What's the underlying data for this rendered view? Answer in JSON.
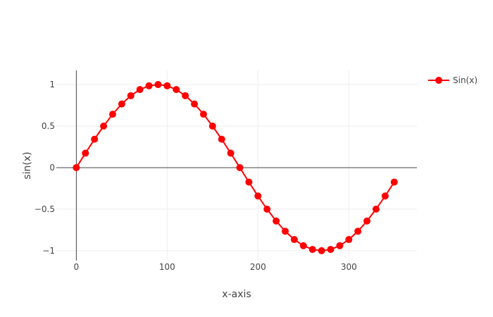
{
  "chart_data": {
    "type": "line",
    "xlabel": "x-axis",
    "ylabel": "sin(x)",
    "xlim": [
      -22,
      375
    ],
    "ylim": [
      -1.12,
      1.17
    ],
    "x_ticks": [
      0,
      100,
      200,
      300
    ],
    "x_tick_labels": [
      "0",
      "100",
      "200",
      "300"
    ],
    "y_ticks": [
      -1,
      -0.5,
      0,
      0.5,
      1
    ],
    "y_tick_labels": [
      "−1",
      "−0.5",
      "0",
      "0.5",
      "1"
    ],
    "grid": true,
    "legend_position": "top-right",
    "series": [
      {
        "name": "Sin(x)",
        "color": "#ff0000",
        "marker": "circle",
        "x": [
          0,
          10,
          20,
          30,
          40,
          50,
          60,
          70,
          80,
          90,
          100,
          110,
          120,
          130,
          140,
          150,
          160,
          170,
          180,
          190,
          200,
          210,
          220,
          230,
          240,
          250,
          260,
          270,
          280,
          290,
          300,
          310,
          320,
          330,
          340,
          350
        ],
        "y": [
          0,
          0.174,
          0.342,
          0.5,
          0.643,
          0.766,
          0.866,
          0.94,
          0.985,
          1,
          0.985,
          0.94,
          0.866,
          0.766,
          0.643,
          0.5,
          0.342,
          0.174,
          0,
          -0.174,
          -0.342,
          -0.5,
          -0.643,
          -0.766,
          -0.866,
          -0.94,
          -0.985,
          -1,
          -0.985,
          -0.94,
          -0.866,
          -0.766,
          -0.643,
          -0.5,
          -0.342,
          -0.174
        ]
      }
    ]
  }
}
